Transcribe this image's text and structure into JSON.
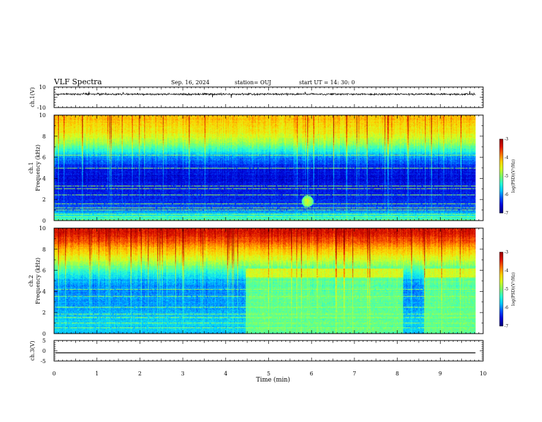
{
  "header": {
    "title": "VLF Spectra",
    "date": "Sep. 16, 2024",
    "station": "station= OUJ",
    "start_ut": "start  UT  =   14: 30: 0"
  },
  "colors": {
    "axis": "#000000",
    "colormap": [
      "#00007a",
      "#0000d8",
      "#0050ff",
      "#00c8ff",
      "#28ffd4",
      "#80ff66",
      "#d8ff20",
      "#ffd000",
      "#ff7000",
      "#e01000",
      "#9a0000"
    ]
  },
  "chart_data": [
    {
      "type": "line",
      "panel": "ch1-waveform",
      "ylabel": "ch.1(V)",
      "ylim": [
        -10,
        10
      ],
      "y_tick_labels": [
        "10",
        "-10"
      ],
      "baseline": 3,
      "xlim": [
        0,
        10
      ]
    },
    {
      "type": "heatmap",
      "panel": "ch1-spectrogram",
      "ylabel_line1": "ch.1",
      "ylabel_line2": "Frequency  (kHz)",
      "ylim": [
        0,
        10
      ],
      "y_tick_labels": [
        "0",
        "2",
        "4",
        "6",
        "8",
        "10"
      ],
      "xlim": [
        0,
        10
      ],
      "data_end_min": 9.82,
      "profile_khz": [
        0,
        0.5,
        1,
        2,
        3,
        4,
        5,
        6,
        6.8,
        7.5,
        8.5,
        10
      ],
      "profile_level": [
        4.5,
        3.5,
        2.0,
        1.5,
        1.3,
        1.1,
        1.4,
        2.6,
        4.2,
        5.5,
        6.5,
        7.2
      ],
      "emission": {
        "x_min": 5.9,
        "f_khz": 1.8,
        "level": 4.2
      },
      "lines_khz": [
        0.3,
        0.6,
        1.0,
        1.2,
        1.6,
        2.4,
        3.0,
        3.3,
        5.0,
        6.2
      ],
      "colorbar": {
        "title": "log(PSD)(V²/Hz)",
        "range": [
          -7,
          -3
        ],
        "tick_labels": [
          "-3",
          "-4",
          "-5",
          "-6",
          "-7"
        ]
      }
    },
    {
      "type": "heatmap",
      "panel": "ch2-spectrogram",
      "ylabel_line1": "ch.2",
      "ylabel_line2": "Frequency  (kHz)",
      "ylim": [
        0,
        10
      ],
      "y_tick_labels": [
        "0",
        "2",
        "4",
        "6",
        "8",
        "10"
      ],
      "xlim": [
        0,
        10
      ],
      "data_end_min": 9.82,
      "profile_khz": [
        0,
        1,
        2,
        3,
        4,
        5,
        6,
        7,
        8,
        9,
        10
      ],
      "profile_level": [
        3.0,
        3.2,
        2.8,
        2.6,
        2.5,
        2.8,
        4.2,
        5.8,
        7.2,
        8.6,
        9.2
      ],
      "raised_intervals_min": [
        [
          4.45,
          8.12
        ],
        [
          8.62,
          9.82
        ]
      ],
      "raised_level": 4.6,
      "lines_khz": [
        0.5,
        1.0,
        1.5,
        1.8,
        2.5,
        3.5,
        4.2
      ],
      "colorbar": {
        "title": "log(PSD)(V²/Hz)",
        "range": [
          -7,
          -3
        ],
        "tick_labels": [
          "-3",
          "-4",
          "-5",
          "-6",
          "-7"
        ]
      }
    },
    {
      "type": "line",
      "panel": "ch3-waveform",
      "ylabel": "ch.3(V)",
      "ylim": [
        -5,
        5
      ],
      "y_tick_labels": [
        "5",
        "0",
        "-5"
      ],
      "constant_value": -1.0,
      "xlim": [
        0,
        10
      ],
      "xlabel": "Time  (min)",
      "x_tick_labels": [
        "0",
        "1",
        "2",
        "3",
        "4",
        "5",
        "6",
        "7",
        "8",
        "9",
        "10"
      ]
    }
  ]
}
